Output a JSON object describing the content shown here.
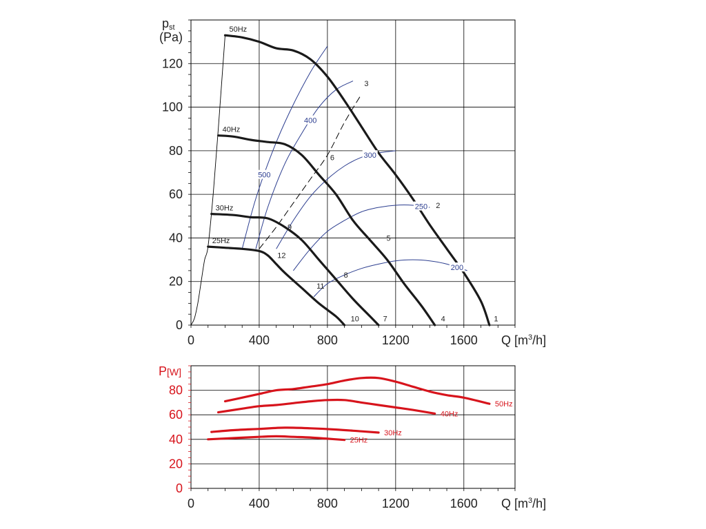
{
  "chart_data": [
    {
      "type": "line",
      "title": "",
      "ylabel_main": "p",
      "ylabel_sub": "st",
      "ylabel_unit": "(Pa)",
      "xlabel_prefix": "Q [m",
      "xlabel_sup": "3",
      "xlabel_suffix": "/h]",
      "xlim": [
        0,
        1900
      ],
      "ylim": [
        0,
        140
      ],
      "x_ticks": [
        0,
        400,
        800,
        1200,
        1600
      ],
      "x_tick_labels": [
        "0",
        "400",
        "800",
        "1200",
        "1600"
      ],
      "y_ticks": [
        0,
        20,
        40,
        60,
        80,
        100,
        120
      ],
      "y_tick_labels": [
        "0",
        "20",
        "40",
        "60",
        "80",
        "100",
        "120"
      ],
      "grid": true,
      "series": [
        {
          "name": "50Hz",
          "label": "50Hz",
          "x": [
            200,
            300,
            400,
            500,
            600,
            700,
            800,
            900,
            1000,
            1100,
            1200,
            1300,
            1400,
            1500,
            1600,
            1700,
            1750
          ],
          "y": [
            133,
            132,
            130,
            127,
            126,
            122,
            114,
            103,
            91,
            79,
            69,
            58,
            46,
            35,
            24,
            11,
            0
          ]
        },
        {
          "name": "40Hz",
          "label": "40Hz",
          "x": [
            160,
            250,
            350,
            450,
            550,
            650,
            750,
            850,
            950,
            1050,
            1150,
            1250,
            1350,
            1430
          ],
          "y": [
            87,
            86.5,
            85,
            84,
            83,
            78,
            69,
            60,
            48,
            39,
            30,
            19,
            9,
            0
          ]
        },
        {
          "name": "30Hz",
          "label": "30Hz",
          "x": [
            120,
            250,
            350,
            450,
            550,
            650,
            750,
            850,
            950,
            1050,
            1100
          ],
          "y": [
            51,
            50.5,
            49.5,
            49,
            45,
            39,
            30,
            21,
            12,
            4,
            0
          ]
        },
        {
          "name": "25Hz",
          "label": "25Hz",
          "x": [
            100,
            200,
            300,
            400,
            450,
            500,
            550,
            650,
            750,
            850,
            900
          ],
          "y": [
            36,
            35.5,
            35,
            34,
            32,
            28,
            24,
            17,
            10,
            4,
            0
          ]
        }
      ],
      "point_labels": [
        {
          "label": "1",
          "x": 1760,
          "y": 3
        },
        {
          "label": "2",
          "x": 1420,
          "y": 55
        },
        {
          "label": "3",
          "x": 1000,
          "y": 111
        },
        {
          "label": "4",
          "x": 1450,
          "y": 3
        },
        {
          "label": "5",
          "x": 1130,
          "y": 40
        },
        {
          "label": "6",
          "x": 800,
          "y": 77
        },
        {
          "label": "7",
          "x": 1110,
          "y": 3
        },
        {
          "label": "8",
          "x": 880,
          "y": 23
        },
        {
          "label": "9",
          "x": 550,
          "y": 45
        },
        {
          "label": "10",
          "x": 920,
          "y": 3
        },
        {
          "label": "11",
          "x": 720,
          "y": 18
        },
        {
          "label": "12",
          "x": 490,
          "y": 32
        }
      ],
      "efficiency_curves": [
        {
          "label": "500",
          "x": [
            300,
            380,
            480,
            580,
            700,
            800
          ],
          "y": [
            35,
            58,
            80,
            98,
            116,
            128
          ]
        },
        {
          "label": "400",
          "x": [
            380,
            450,
            550,
            650,
            750,
            850,
            950
          ],
          "y": [
            35,
            54,
            74,
            88,
            100,
            108,
            112
          ]
        },
        {
          "label": "300",
          "x": [
            500,
            600,
            700,
            800,
            900,
            1000,
            1100,
            1200
          ],
          "y": [
            35,
            48,
            59,
            67,
            73,
            77,
            79,
            80
          ]
        },
        {
          "label": "250",
          "x": [
            600,
            700,
            800,
            900,
            1000,
            1100,
            1200,
            1300,
            1400
          ],
          "y": [
            25,
            35,
            43,
            48,
            52,
            54,
            55,
            55,
            54
          ]
        },
        {
          "label": "200",
          "x": [
            720,
            800,
            900,
            1000,
            1100,
            1200,
            1300,
            1400,
            1500,
            1620
          ],
          "y": [
            13,
            19,
            23,
            26,
            28,
            29.5,
            30,
            29.5,
            28,
            25
          ]
        }
      ],
      "dashed_line": {
        "x": [
          400,
          500,
          600,
          700,
          800,
          900,
          1000
        ],
        "y": [
          35,
          45,
          56,
          67,
          78,
          93,
          106
        ]
      },
      "start_curve": {
        "x": [
          0,
          20,
          40,
          60,
          80,
          100,
          130,
          160,
          200
        ],
        "y": [
          0,
          3,
          10,
          20,
          30,
          36,
          60,
          90,
          133
        ]
      }
    },
    {
      "type": "line",
      "title": "",
      "ylabel_main": "P",
      "ylabel_unit": "[W]",
      "xlabel_prefix": "Q [m",
      "xlabel_sup": "3",
      "xlabel_suffix": "/h]",
      "xlim": [
        0,
        1900
      ],
      "ylim": [
        0,
        100
      ],
      "x_ticks": [
        0,
        400,
        800,
        1200,
        1600
      ],
      "x_tick_labels": [
        "0",
        "400",
        "800",
        "1200",
        "1600"
      ],
      "y_ticks": [
        0,
        20,
        40,
        60,
        80
      ],
      "y_tick_labels": [
        "0",
        "20",
        "40",
        "60",
        "80"
      ],
      "grid": true,
      "color": "#d7141c",
      "series": [
        {
          "name": "50Hz",
          "label": "50Hz",
          "x": [
            200,
            300,
            400,
            500,
            600,
            700,
            800,
            900,
            1000,
            1100,
            1200,
            1300,
            1400,
            1500,
            1600,
            1750
          ],
          "y": [
            71,
            74,
            77,
            80,
            81,
            83,
            85,
            88,
            90,
            90,
            87,
            83,
            79,
            76,
            74,
            69
          ]
        },
        {
          "name": "40Hz",
          "label": "40Hz",
          "x": [
            160,
            300,
            400,
            500,
            600,
            700,
            800,
            900,
            1000,
            1100,
            1200,
            1300,
            1430
          ],
          "y": [
            62,
            65,
            67,
            68,
            69.5,
            71,
            72,
            72,
            70,
            68,
            66,
            64,
            61
          ]
        },
        {
          "name": "30Hz",
          "label": "30Hz",
          "x": [
            120,
            250,
            400,
            550,
            700,
            850,
            1000,
            1100
          ],
          "y": [
            46,
            47.5,
            48.5,
            49.5,
            49,
            48,
            46.5,
            45.5
          ]
        },
        {
          "name": "25Hz",
          "label": "25Hz",
          "x": [
            100,
            250,
            400,
            500,
            600,
            700,
            800,
            900
          ],
          "y": [
            40,
            41,
            42,
            42.5,
            42,
            41.5,
            40.5,
            39.5
          ]
        }
      ]
    }
  ]
}
